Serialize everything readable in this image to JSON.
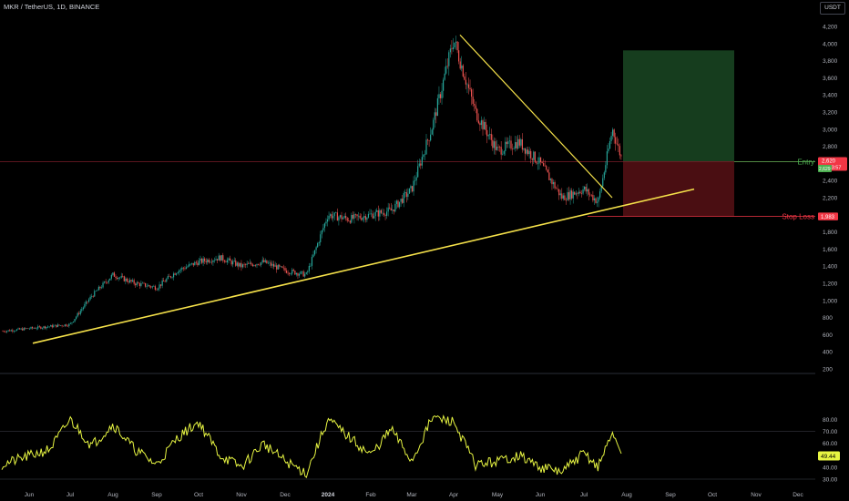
{
  "header": {
    "symbol_line": "MKR / TetherUS, 1D, BINANCE",
    "currency": "USDT"
  },
  "colors": {
    "up": "#26a69a",
    "down": "#ef5350",
    "trendline": "#f5e14a",
    "rsi": "#e7f542",
    "profit_zone": "#1e5128",
    "loss_zone": "#5c1116",
    "entry_label": "#4caf50",
    "stop_label": "#f23645"
  },
  "chart_data": [
    {
      "type": "candlestick",
      "title": "",
      "x_tick_labels": [
        "Jun",
        "Jul",
        "Aug",
        "Sep",
        "Oct",
        "Nov",
        "Dec",
        "2024",
        "Feb",
        "Mar",
        "Apr",
        "May",
        "Jun",
        "Jul",
        "Aug",
        "Sep",
        "Oct",
        "Nov",
        "Dec"
      ],
      "y_tick_labels": [
        "4,200",
        "4,000",
        "3,800",
        "3,600",
        "3,400",
        "3,200",
        "3,000",
        "2,800",
        "2,600",
        "2,400",
        "2,200",
        "2,000",
        "1,800",
        "1,600",
        "1,400",
        "1,200",
        "1,000",
        "800",
        "600",
        "400",
        "200"
      ],
      "ylim": [
        200,
        4200
      ],
      "price_anchors": [
        [
          "Jun",
          640
        ],
        [
          "Jul",
          720
        ],
        [
          "Jul",
          1050
        ],
        [
          "Aug",
          1300
        ],
        [
          "Aug",
          1200
        ],
        [
          "Sep",
          1150
        ],
        [
          "Sep",
          1350
        ],
        [
          "Oct",
          1450
        ],
        [
          "Oct",
          1500
        ],
        [
          "Nov",
          1400
        ],
        [
          "Nov",
          1450
        ],
        [
          "Dec",
          1350
        ],
        [
          "Dec",
          1300
        ],
        [
          "2024",
          2000
        ],
        [
          "2024",
          1950
        ],
        [
          "Feb",
          2000
        ],
        [
          "Feb",
          2050
        ],
        [
          "Mar",
          2300
        ],
        [
          "Mar",
          3050
        ],
        [
          "Apr",
          4050
        ],
        [
          "Apr",
          3200
        ],
        [
          "May",
          2750
        ],
        [
          "May",
          2850
        ],
        [
          "Jun",
          2600
        ],
        [
          "Jun",
          2200
        ],
        [
          "Jul",
          2300
        ],
        [
          "Jul",
          2150
        ],
        [
          "Jul",
          3000
        ],
        [
          "Aug",
          2600
        ]
      ],
      "support_trendline": {
        "from": [
          "Jun",
          500
        ],
        "to": [
          "Aug",
          2300
        ]
      },
      "resistance_trendline": {
        "from": [
          "Apr",
          4100
        ],
        "to": [
          "Jul",
          2200
        ]
      },
      "position": {
        "entry": 2620,
        "stop_loss": 1983,
        "target": 3920,
        "entry_label": "Entry",
        "stop_label": "Stop Loss"
      },
      "price_labels": {
        "last": "2,620",
        "countdown": "10:33:57",
        "green_tag": "2,629",
        "stop_tag": "1,983"
      }
    },
    {
      "type": "line",
      "title": "",
      "y_tick_labels": [
        "80.00",
        "70.00",
        "60.00",
        "50.00",
        "40.00",
        "30.00"
      ],
      "ylim": [
        30,
        85
      ],
      "guide_levels": [
        70,
        30
      ],
      "last_value": "49.44",
      "rsi_anchors": [
        [
          "Jun",
          42
        ],
        [
          "Jun",
          55
        ],
        [
          "Jul",
          80
        ],
        [
          "Jul",
          58
        ],
        [
          "Aug",
          76
        ],
        [
          "Aug",
          55
        ],
        [
          "Sep",
          42
        ],
        [
          "Sep",
          65
        ],
        [
          "Oct",
          78
        ],
        [
          "Oct",
          50
        ],
        [
          "Nov",
          40
        ],
        [
          "Nov",
          60
        ],
        [
          "Dec",
          45
        ],
        [
          "Dec",
          35
        ],
        [
          "2024",
          80
        ],
        [
          "2024",
          65
        ],
        [
          "Feb",
          50
        ],
        [
          "Feb",
          72
        ],
        [
          "Mar",
          45
        ],
        [
          "Mar",
          82
        ],
        [
          "Apr",
          78
        ],
        [
          "Apr",
          42
        ],
        [
          "May",
          45
        ],
        [
          "May",
          50
        ],
        [
          "Jun",
          40
        ],
        [
          "Jun",
          36
        ],
        [
          "Jul",
          52
        ],
        [
          "Jul",
          40
        ],
        [
          "Jul",
          70
        ],
        [
          "Aug",
          49.44
        ]
      ]
    }
  ]
}
